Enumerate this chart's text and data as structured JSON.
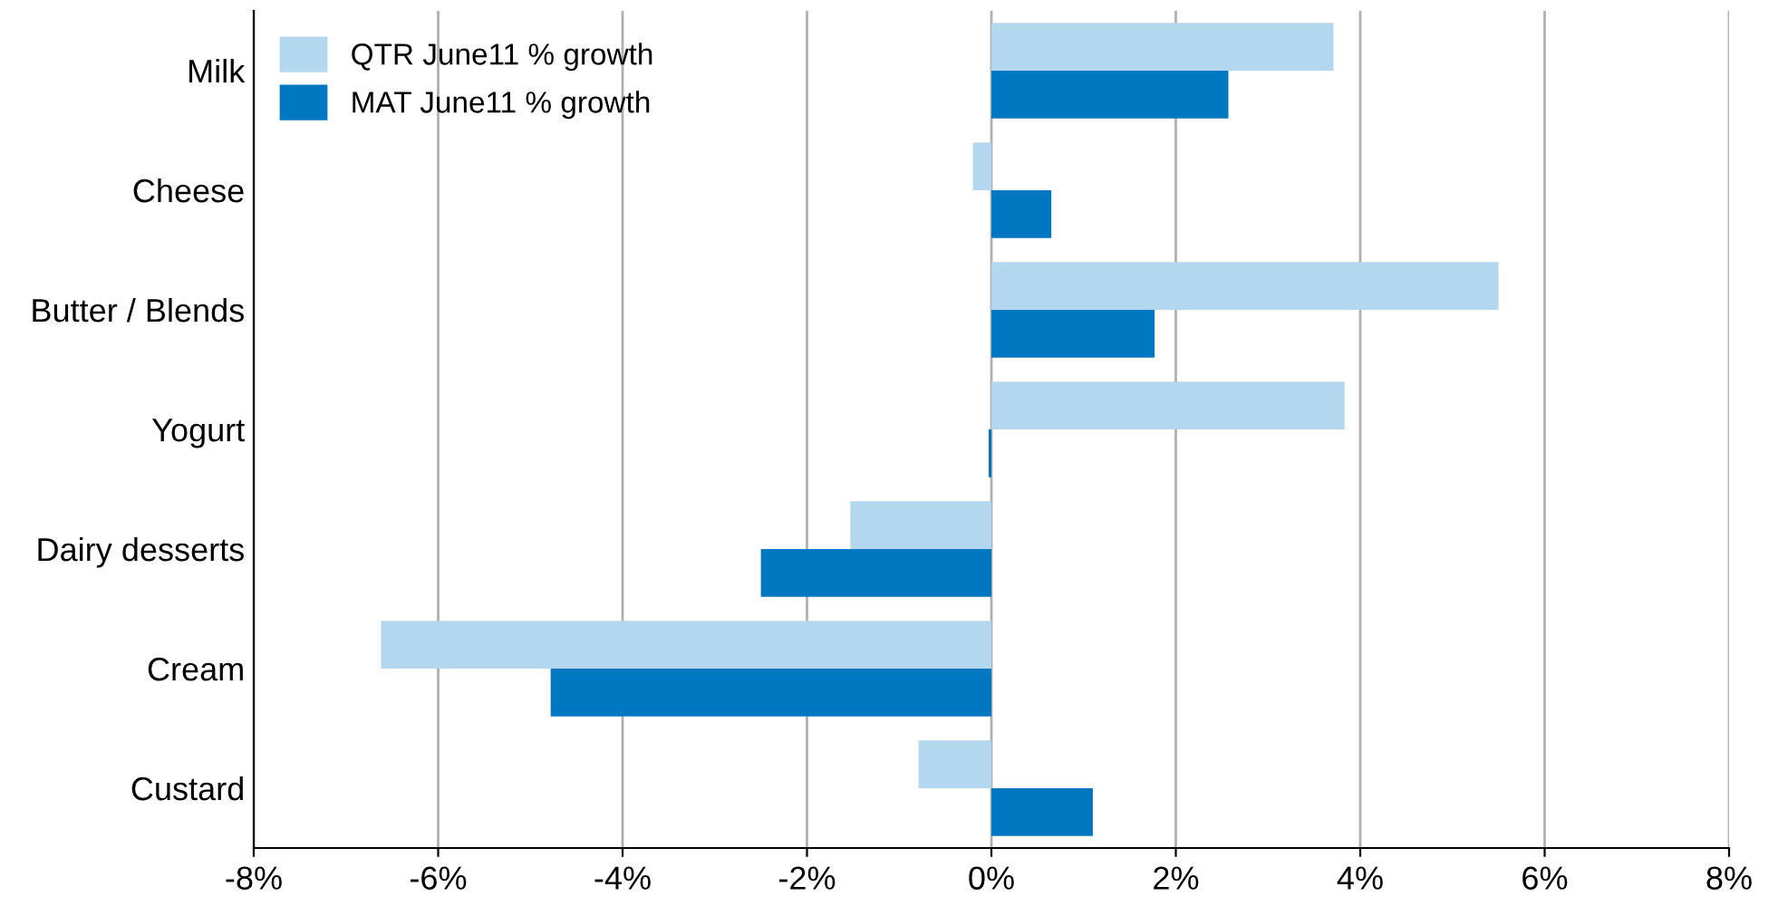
{
  "chart_data": {
    "type": "bar",
    "orientation": "horizontal",
    "categories": [
      "Milk",
      "Cheese",
      "Butter / Blends",
      "Yogurt",
      "Dairy desserts",
      "Cream",
      "Custard"
    ],
    "series": [
      {
        "name": "QTR June11 % growth",
        "color": "#b3d7ee",
        "values": [
          3.71,
          -0.2,
          5.5,
          3.83,
          -1.53,
          -6.62,
          -0.79
        ]
      },
      {
        "name": "MAT June11 % growth",
        "color": "#0078c1",
        "values": [
          2.57,
          0.65,
          1.77,
          -0.03,
          -2.5,
          -4.78,
          1.1
        ]
      }
    ],
    "xlim": [
      -8,
      8
    ],
    "xticks": [
      {
        "value": -8,
        "label": "-8%"
      },
      {
        "value": -6,
        "label": "-6%"
      },
      {
        "value": -4,
        "label": "-4%"
      },
      {
        "value": -2,
        "label": "-2%"
      },
      {
        "value": 0,
        "label": "0%"
      },
      {
        "value": 2,
        "label": "2%"
      },
      {
        "value": 4,
        "label": "4%"
      },
      {
        "value": 6,
        "label": "6%"
      },
      {
        "value": 8,
        "label": "8%"
      }
    ],
    "grid": "x",
    "legend": "top left"
  }
}
